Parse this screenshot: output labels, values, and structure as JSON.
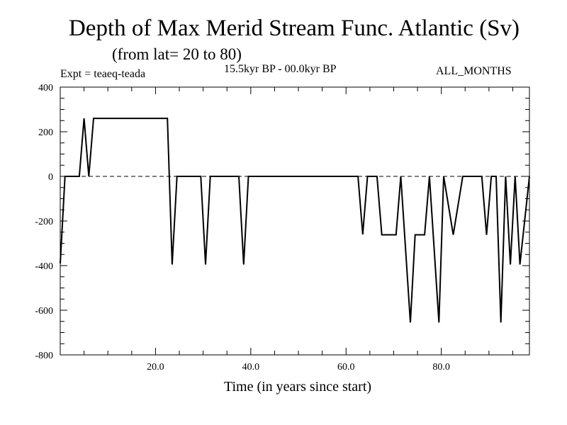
{
  "chart_data": {
    "type": "line",
    "title": "Depth of Max Merid Stream Func. Atlantic (Sv)",
    "subtitle": "(from lat= 20 to 80)",
    "experiment": "Expt = teaeq-teada",
    "period": "15.5kyr BP - 00.0kyr BP",
    "months": "ALL_MONTHS",
    "xlabel": "Time (in years since start)",
    "ylabel": "",
    "xlim": [
      0,
      98.5
    ],
    "ylim": [
      -800,
      400
    ],
    "x_ticks": [
      20,
      40,
      60,
      80
    ],
    "x_tick_labels": [
      "20.0",
      "40.0",
      "60.0",
      "80.0"
    ],
    "y_ticks": [
      -800,
      -600,
      -400,
      -200,
      0,
      200,
      400
    ],
    "y_tick_labels": [
      "-800",
      "-600",
      "-400",
      "-200",
      "0",
      "200",
      "400"
    ],
    "reference_line": 0,
    "series": [
      {
        "name": "Depth of Max Merid Stream Func.",
        "x": [
          0,
          1,
          4,
          5,
          6,
          7,
          22.5,
          23.5,
          24.5,
          29.5,
          30.5,
          31.5,
          37.5,
          38.5,
          39.5,
          62.5,
          63.5,
          64.5,
          66.5,
          67.5,
          70.5,
          71.5,
          73.5,
          74.5,
          76.5,
          77.5,
          79.5,
          80.5,
          82.5,
          84.5,
          88.5,
          89.5,
          90.5,
          91.5,
          92.5,
          93.5,
          94.5,
          95.5,
          96.5,
          98.5
        ],
        "values": [
          -390,
          0,
          0,
          260,
          0,
          260,
          260,
          -395,
          0,
          0,
          -395,
          0,
          0,
          -395,
          0,
          0,
          -260,
          0,
          0,
          -262,
          -262,
          0,
          -655,
          -262,
          -262,
          0,
          -655,
          0,
          -262,
          0,
          0,
          -262,
          0,
          0,
          -655,
          0,
          -395,
          0,
          -395,
          0
        ]
      }
    ]
  }
}
